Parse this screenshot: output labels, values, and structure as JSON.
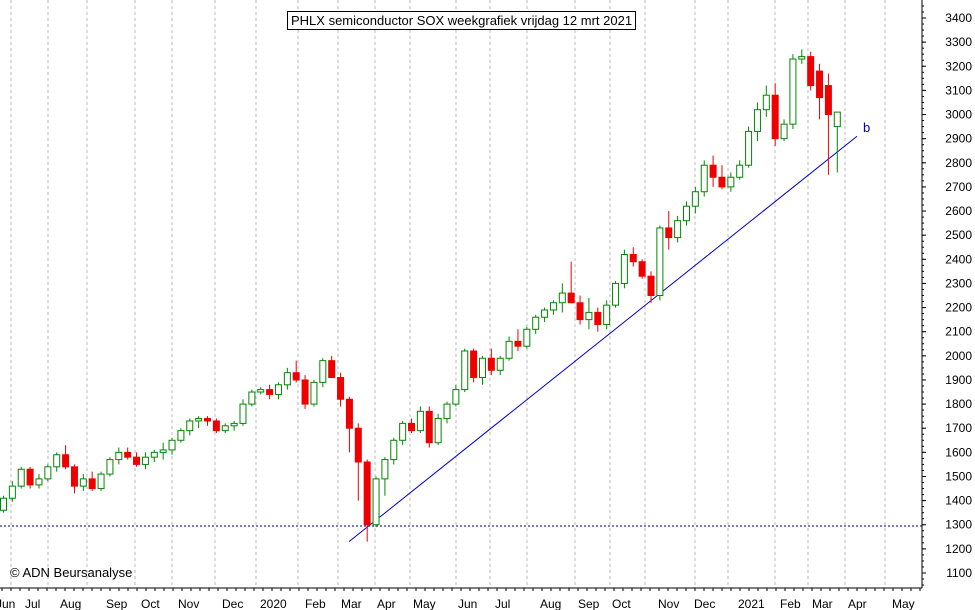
{
  "chart_data": {
    "type": "candlestick",
    "title": "PHLX semiconductor SOX weekgrafiek vrijdag 12 mrt 2021",
    "copyright": "© ADN Beursanalyse",
    "y_axis": {
      "position": "right",
      "ylim": [
        1050,
        3450
      ],
      "ticks": [
        1100,
        1200,
        1300,
        1400,
        1500,
        1600,
        1700,
        1800,
        1900,
        2000,
        2100,
        2200,
        2300,
        2400,
        2500,
        2600,
        2700,
        2800,
        2900,
        3000,
        3100,
        3200,
        3300,
        3400
      ]
    },
    "x_axis": {
      "labels": [
        "Jun",
        "Jul",
        "Aug",
        "Sep",
        "Oct",
        "Nov",
        "Dec",
        "2020",
        "Feb",
        "Mar",
        "Apr",
        "May",
        "Jun",
        "Jul",
        "Aug",
        "Sep",
        "Oct",
        "Nov",
        "Dec",
        "2021",
        "Feb",
        "Mar",
        "Apr",
        "May"
      ]
    },
    "grid": "vertical-dashed",
    "support_level": 1295,
    "trendline": {
      "label": "b",
      "start": [
        64,
        1230
      ],
      "end": [
        115,
        2910
      ]
    },
    "colors": {
      "up": "#008800",
      "down": "#ee0000",
      "trend": "#0000cc",
      "grid": "#b8b8b8",
      "support": "#000066"
    },
    "candles": [
      [
        1360,
        1420,
        1350,
        1410
      ],
      [
        1410,
        1480,
        1395,
        1460
      ],
      [
        1460,
        1540,
        1450,
        1530
      ],
      [
        1530,
        1540,
        1450,
        1465
      ],
      [
        1465,
        1510,
        1450,
        1490
      ],
      [
        1490,
        1550,
        1480,
        1540
      ],
      [
        1540,
        1600,
        1520,
        1590
      ],
      [
        1590,
        1630,
        1530,
        1540
      ],
      [
        1540,
        1550,
        1430,
        1460
      ],
      [
        1460,
        1510,
        1440,
        1490
      ],
      [
        1490,
        1520,
        1440,
        1450
      ],
      [
        1450,
        1520,
        1440,
        1510
      ],
      [
        1510,
        1580,
        1500,
        1570
      ],
      [
        1570,
        1620,
        1550,
        1600
      ],
      [
        1600,
        1620,
        1570,
        1580
      ],
      [
        1580,
        1600,
        1540,
        1550
      ],
      [
        1550,
        1600,
        1530,
        1580
      ],
      [
        1580,
        1610,
        1560,
        1600
      ],
      [
        1600,
        1640,
        1570,
        1610
      ],
      [
        1610,
        1660,
        1590,
        1650
      ],
      [
        1650,
        1700,
        1640,
        1690
      ],
      [
        1690,
        1740,
        1670,
        1730
      ],
      [
        1730,
        1750,
        1700,
        1740
      ],
      [
        1740,
        1750,
        1710,
        1730
      ],
      [
        1730,
        1740,
        1680,
        1690
      ],
      [
        1690,
        1720,
        1680,
        1710
      ],
      [
        1710,
        1730,
        1690,
        1720
      ],
      [
        1720,
        1820,
        1710,
        1800
      ],
      [
        1800,
        1860,
        1790,
        1850
      ],
      [
        1850,
        1870,
        1840,
        1860
      ],
      [
        1860,
        1880,
        1820,
        1840
      ],
      [
        1840,
        1890,
        1820,
        1880
      ],
      [
        1880,
        1950,
        1860,
        1930
      ],
      [
        1930,
        1980,
        1890,
        1900
      ],
      [
        1900,
        1920,
        1780,
        1800
      ],
      [
        1800,
        1900,
        1790,
        1890
      ],
      [
        1890,
        1990,
        1870,
        1980
      ],
      [
        1980,
        2000,
        1910,
        1910
      ],
      [
        1910,
        1930,
        1790,
        1820
      ],
      [
        1820,
        1830,
        1600,
        1700
      ],
      [
        1700,
        1720,
        1400,
        1560
      ],
      [
        1560,
        1570,
        1230,
        1300
      ],
      [
        1300,
        1500,
        1290,
        1490
      ],
      [
        1490,
        1580,
        1420,
        1570
      ],
      [
        1570,
        1660,
        1550,
        1650
      ],
      [
        1650,
        1730,
        1630,
        1720
      ],
      [
        1720,
        1740,
        1680,
        1690
      ],
      [
        1690,
        1790,
        1680,
        1770
      ],
      [
        1770,
        1790,
        1620,
        1640
      ],
      [
        1640,
        1760,
        1630,
        1740
      ],
      [
        1740,
        1810,
        1720,
        1800
      ],
      [
        1800,
        1880,
        1790,
        1860
      ],
      [
        1860,
        2030,
        1850,
        2020
      ],
      [
        2020,
        2030,
        1890,
        1910
      ],
      [
        1910,
        2000,
        1880,
        1990
      ],
      [
        1990,
        2030,
        1920,
        1940
      ],
      [
        1940,
        2000,
        1920,
        1990
      ],
      [
        1990,
        2080,
        1980,
        2060
      ],
      [
        2060,
        2110,
        2020,
        2040
      ],
      [
        2040,
        2120,
        2030,
        2110
      ],
      [
        2110,
        2170,
        2090,
        2160
      ],
      [
        2160,
        2200,
        2140,
        2190
      ],
      [
        2190,
        2230,
        2170,
        2220
      ],
      [
        2220,
        2300,
        2180,
        2260
      ],
      [
        2260,
        2390,
        2240,
        2220
      ],
      [
        2220,
        2250,
        2130,
        2150
      ],
      [
        2150,
        2240,
        2110,
        2180
      ],
      [
        2180,
        2200,
        2100,
        2130
      ],
      [
        2130,
        2230,
        2110,
        2210
      ],
      [
        2210,
        2310,
        2200,
        2300
      ],
      [
        2300,
        2440,
        2280,
        2420
      ],
      [
        2420,
        2450,
        2370,
        2390
      ],
      [
        2390,
        2400,
        2320,
        2330
      ],
      [
        2330,
        2350,
        2220,
        2250
      ],
      [
        2250,
        2540,
        2230,
        2530
      ],
      [
        2530,
        2600,
        2440,
        2490
      ],
      [
        2490,
        2580,
        2470,
        2560
      ],
      [
        2560,
        2640,
        2540,
        2620
      ],
      [
        2620,
        2700,
        2590,
        2680
      ],
      [
        2680,
        2810,
        2660,
        2790
      ],
      [
        2790,
        2830,
        2700,
        2740
      ],
      [
        2740,
        2790,
        2690,
        2700
      ],
      [
        2700,
        2760,
        2680,
        2740
      ],
      [
        2740,
        2810,
        2730,
        2790
      ],
      [
        2790,
        2950,
        2780,
        2930
      ],
      [
        2930,
        3050,
        2890,
        3020
      ],
      [
        3020,
        3120,
        2990,
        3080
      ],
      [
        3080,
        3130,
        2870,
        2900
      ],
      [
        2900,
        2980,
        2890,
        2960
      ],
      [
        2960,
        3250,
        2940,
        3230
      ],
      [
        3230,
        3270,
        3210,
        3240
      ],
      [
        3240,
        3260,
        3100,
        3120
      ],
      [
        3180,
        3210,
        2980,
        3070
      ],
      [
        3120,
        3170,
        2750,
        3000
      ],
      [
        2950,
        3010,
        2760,
        3010
      ]
    ]
  }
}
